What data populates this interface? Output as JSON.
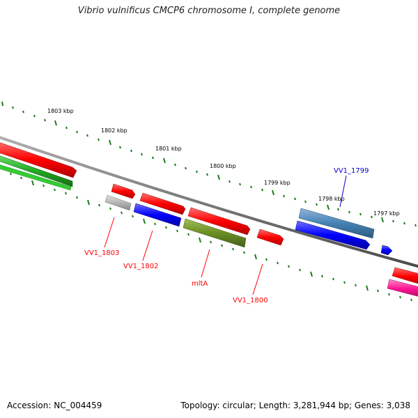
{
  "title": "Vibrio vulnificus CMCP6 chromosome I, complete genome",
  "footer": {
    "accession": "Accession: NC_004459",
    "stats": "Topology: circular; Length: 3,281,944 bp; Genes: 3,038"
  },
  "scale_labels": [
    "1803 kbp",
    "1802 kbp",
    "1801 kbp",
    "1800 kbp",
    "1799 kbp",
    "1798 kbp",
    "1797 kbp"
  ],
  "gene_labels": [
    {
      "text": "VV1_1803",
      "color": "#ff0000"
    },
    {
      "text": "VV1_1802",
      "color": "#ff0000"
    },
    {
      "text": "mltA",
      "color": "#ff0000"
    },
    {
      "text": "VV1_1800",
      "color": "#ff0000"
    },
    {
      "text": "VV1_1799",
      "color": "#0000cc"
    }
  ],
  "colors": {
    "backbone": "#808080",
    "ticks": "#1a7a1a",
    "red": "#ff0000",
    "blue": "#0000ff",
    "steel": "#4682b4",
    "olive": "#6b8e23",
    "grey": "#b0b0b0",
    "green": "#228b22",
    "pink": "#ff1493"
  }
}
